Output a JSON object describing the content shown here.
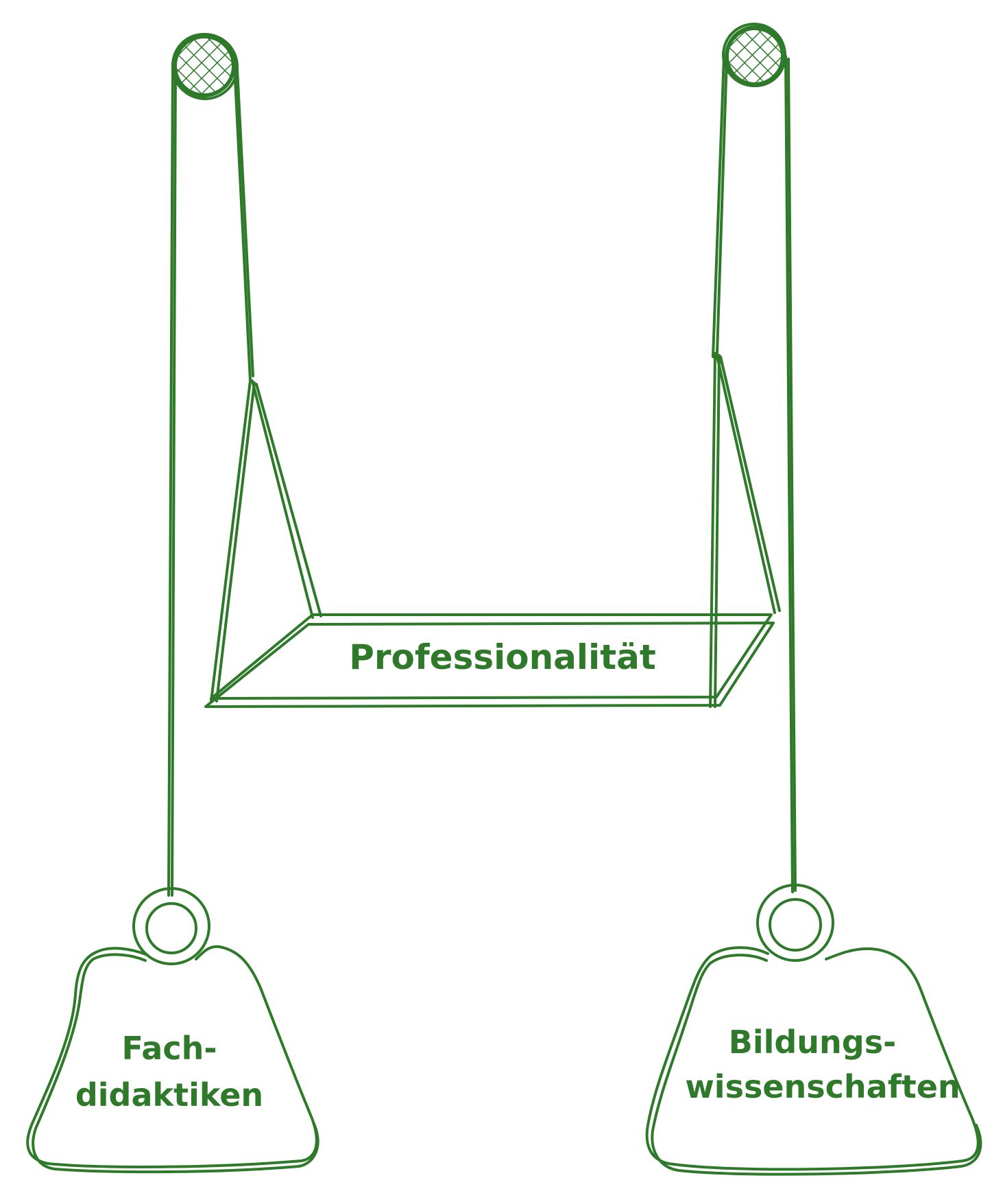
{
  "diagram": {
    "colors": {
      "ink": "#2e7a2a",
      "background": "#ffffff"
    },
    "seat": {
      "label": "Professionalität"
    },
    "weights": [
      {
        "id": "left",
        "line1": "Fach-",
        "line2": "didaktiken"
      },
      {
        "id": "right",
        "line1": "Bildungs-",
        "line2": "wissenschaften"
      }
    ]
  }
}
